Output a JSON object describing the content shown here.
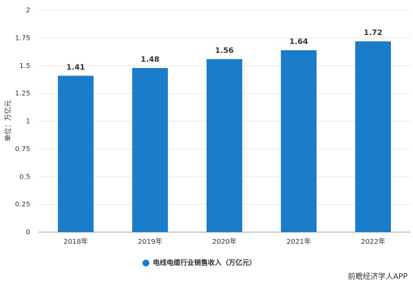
{
  "chart_data": {
    "type": "bar",
    "y_label": "单位：万亿元",
    "categories": [
      "2018年",
      "2019年",
      "2020年",
      "2021年",
      "2022年"
    ],
    "series": [
      {
        "name": "电线电缆行业销售收入（万亿元）",
        "color": "#1b7cc9",
        "values": [
          1.41,
          1.48,
          1.56,
          1.64,
          1.72
        ]
      }
    ],
    "ylim": [
      0,
      2
    ],
    "yticks": [
      0,
      0.25,
      0.5,
      0.75,
      1,
      1.25,
      1.5,
      1.75,
      2
    ],
    "grid": true,
    "legend": "bottom"
  },
  "footer": "前瞻经济学人APP"
}
